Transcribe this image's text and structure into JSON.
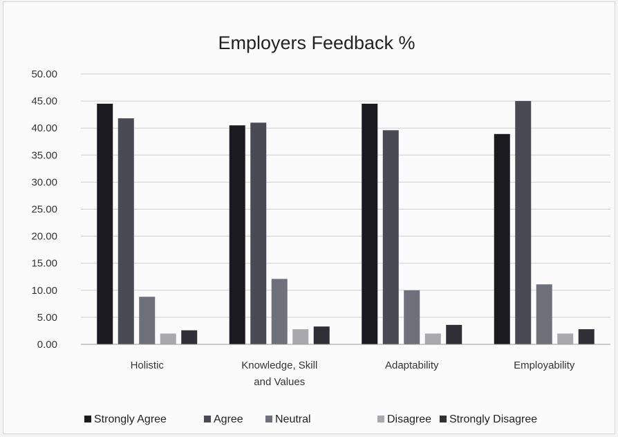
{
  "chart_data": {
    "type": "bar",
    "title": "Employers Feedback %",
    "xlabel": "",
    "ylabel": "",
    "ylim": [
      0,
      50
    ],
    "yticks": [
      "0.00",
      "5.00",
      "10.00",
      "15.00",
      "20.00",
      "25.00",
      "30.00",
      "35.00",
      "40.00",
      "45.00",
      "50.00"
    ],
    "categories": [
      [
        "Holistic"
      ],
      [
        "Knowledge, Skill",
        "and Values"
      ],
      [
        "Adaptability"
      ],
      [
        "Employability"
      ]
    ],
    "series": [
      {
        "name": "Strongly Agree",
        "color": "#1b1b1f",
        "values": [
          44.5,
          40.5,
          44.5,
          38.9
        ]
      },
      {
        "name": "Agree",
        "color": "#4a4a52",
        "values": [
          41.8,
          41.0,
          39.6,
          45.0
        ]
      },
      {
        "name": "Neutral",
        "color": "#6e717a",
        "values": [
          8.8,
          12.1,
          10.0,
          11.1
        ]
      },
      {
        "name": "Disagree",
        "color": "#a9a9ad",
        "values": [
          2.0,
          2.8,
          2.0,
          2.0
        ]
      },
      {
        "name": "Strongly Disagree",
        "color": "#2f2f35",
        "values": [
          2.6,
          3.3,
          3.6,
          2.8
        ]
      }
    ],
    "grid": true,
    "legend": "bottom"
  }
}
